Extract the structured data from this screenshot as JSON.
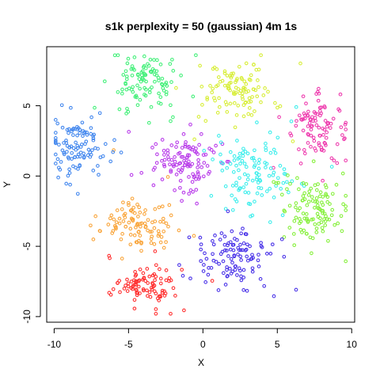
{
  "chart_data": {
    "type": "scatter",
    "title": "s1k perplexity = 50 (gaussian) 4m 1s",
    "xlabel": "X",
    "ylabel": "Y",
    "xlim": [
      -10.5,
      10.2
    ],
    "ylim": [
      -10.4,
      9.2
    ],
    "xticks": [
      -10,
      -5,
      0,
      5,
      10
    ],
    "yticks": [
      -10,
      -5,
      0,
      5
    ],
    "grid": false,
    "legend": "none",
    "marker": "open-circle",
    "series": [
      {
        "color": "#FF3030",
        "center": [
          -3.8,
          -7.8
        ],
        "spread": [
          1.0,
          0.75
        ],
        "n": 95
      },
      {
        "color": "#F9A53B",
        "center": [
          -4.4,
          -3.4
        ],
        "spread": [
          1.3,
          0.95
        ],
        "n": 105
      },
      {
        "color": "#4488EE",
        "center": [
          -8.4,
          2.1
        ],
        "spread": [
          1.0,
          1.05
        ],
        "n": 110
      },
      {
        "color": "#44F07A",
        "center": [
          -3.9,
          6.6
        ],
        "spread": [
          1.1,
          1.05
        ],
        "n": 105
      },
      {
        "color": "#D8EE3A",
        "center": [
          2.3,
          6.1
        ],
        "spread": [
          1.25,
          0.95
        ],
        "n": 110
      },
      {
        "color": "#EE3EAF",
        "center": [
          7.9,
          3.5
        ],
        "spread": [
          0.85,
          1.05
        ],
        "n": 100
      },
      {
        "color": "#B93DEA",
        "center": [
          -1.3,
          0.7
        ],
        "spread": [
          1.25,
          1.05
        ],
        "n": 115
      },
      {
        "color": "#3EEEEC",
        "center": [
          3.3,
          0.2
        ],
        "spread": [
          1.2,
          1.35
        ],
        "n": 115
      },
      {
        "color": "#86F03C",
        "center": [
          7.4,
          -2.3
        ],
        "spread": [
          1.2,
          1.15
        ],
        "n": 115
      },
      {
        "color": "#4A33E8",
        "center": [
          2.1,
          -5.8
        ],
        "spread": [
          1.25,
          1.05
        ],
        "n": 110
      }
    ]
  }
}
